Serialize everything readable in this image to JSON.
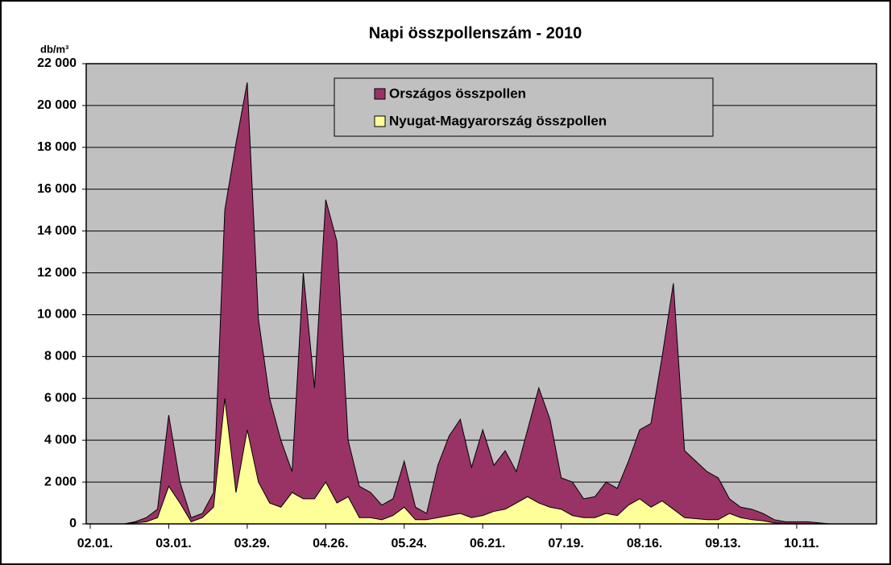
{
  "chart_data": {
    "type": "area",
    "title": "Napi összpollenszám - 2010",
    "y_label": "db/m³",
    "categories": [
      "02.01.",
      null,
      null,
      null,
      null,
      null,
      null,
      "03.01.",
      null,
      null,
      null,
      null,
      null,
      null,
      "03.29.",
      null,
      null,
      null,
      null,
      null,
      null,
      "04.26.",
      null,
      null,
      null,
      null,
      null,
      null,
      "05.24.",
      null,
      null,
      null,
      null,
      null,
      null,
      "06.21.",
      null,
      null,
      null,
      null,
      null,
      null,
      "07.19.",
      null,
      null,
      null,
      null,
      null,
      null,
      "08.16.",
      null,
      null,
      null,
      null,
      null,
      null,
      "09.13.",
      null,
      null,
      null,
      null,
      null,
      null,
      "10.11.",
      null,
      null,
      null
    ],
    "series": [
      {
        "name": "Országos összpollen",
        "color": "#993366",
        "values": [
          0,
          0,
          0,
          0,
          100,
          300,
          700,
          5200,
          2000,
          300,
          500,
          1500,
          15000,
          18200,
          21100,
          9800,
          6000,
          4000,
          2500,
          12000,
          6500,
          15500,
          13500,
          4000,
          1800,
          1500,
          900,
          1200,
          3000,
          800,
          500,
          2800,
          4200,
          5000,
          2700,
          4500,
          2800,
          3500,
          2500,
          4500,
          6500,
          5000,
          2200,
          2000,
          1200,
          1300,
          2000,
          1700,
          3000,
          4500,
          4800,
          8000,
          11500,
          3500,
          3000,
          2500,
          2200,
          1200,
          800,
          700,
          500,
          200,
          100,
          100,
          100,
          50,
          0
        ]
      },
      {
        "name": "Nyugat-Magyarország összpollen",
        "color": "#ffff99",
        "values": [
          0,
          0,
          0,
          0,
          50,
          100,
          300,
          1800,
          1000,
          100,
          300,
          800,
          6000,
          1500,
          4500,
          2000,
          1000,
          800,
          1500,
          1200,
          1200,
          2000,
          1000,
          1300,
          300,
          300,
          200,
          400,
          800,
          200,
          200,
          300,
          400,
          500,
          300,
          400,
          600,
          700,
          1000,
          1300,
          1000,
          800,
          700,
          400,
          300,
          300,
          500,
          400,
          900,
          1200,
          800,
          1100,
          700,
          300,
          250,
          200,
          200,
          500,
          300,
          200,
          150,
          50,
          30,
          20,
          10,
          0,
          0
        ]
      }
    ],
    "ylim": [
      0,
      22000
    ],
    "yticks": [
      0,
      {
        "value": 2000,
        "label": "2 000"
      },
      {
        "value": 4000,
        "label": "4 000"
      },
      {
        "value": 6000,
        "label": "6 000"
      },
      {
        "value": 8000,
        "label": "8 000"
      },
      {
        "value": 10000,
        "label": "10 000"
      },
      {
        "value": 12000,
        "label": "12 000"
      },
      {
        "value": 14000,
        "label": "14 000"
      },
      {
        "value": 16000,
        "label": "16 000"
      },
      {
        "value": 18000,
        "label": "18 000"
      },
      {
        "value": 20000,
        "label": "20 000"
      },
      {
        "value": 22000,
        "label": "22 000"
      }
    ],
    "grid": true,
    "legend": "top"
  }
}
